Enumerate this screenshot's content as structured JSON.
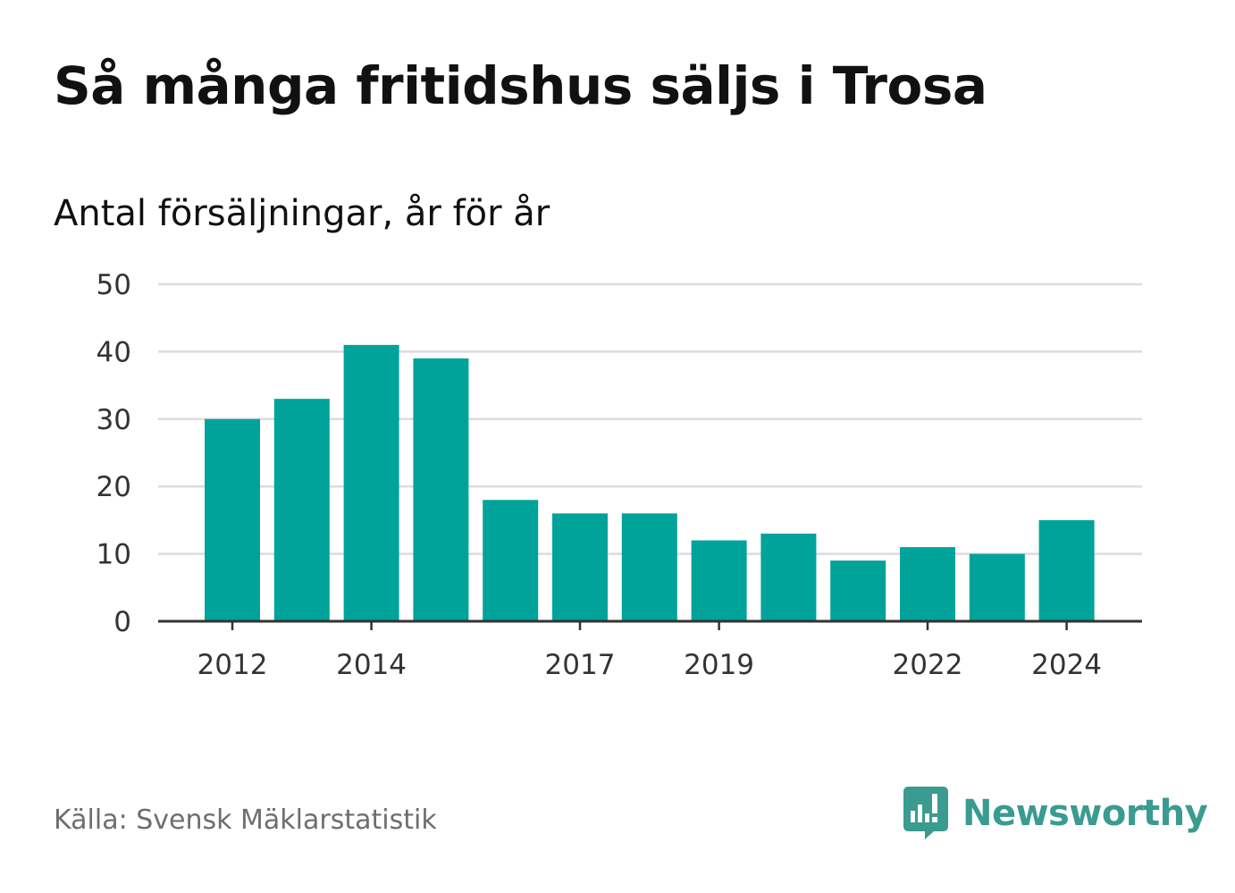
{
  "chart_data": {
    "type": "bar",
    "title": "Så många fritidshus säljs i Trosa",
    "subtitle": "Antal försäljningar, år för år",
    "categories": [
      "2012",
      "2013",
      "2014",
      "2015",
      "2016",
      "2017",
      "2018",
      "2019",
      "2020",
      "2021",
      "2022",
      "2023",
      "2024"
    ],
    "values": [
      30,
      33,
      41,
      39,
      18,
      16,
      16,
      12,
      13,
      9,
      11,
      10,
      15
    ],
    "x_tick_labels": [
      "2012",
      "2014",
      "2017",
      "2019",
      "2022",
      "2024"
    ],
    "y_ticks": [
      0,
      10,
      20,
      30,
      40,
      50
    ],
    "ylim": [
      0,
      50
    ],
    "xlabel": "",
    "ylabel": "",
    "grid": true,
    "bar_color": "#00a39a"
  },
  "footer": {
    "source": "Källa: Svensk Mäklarstatistik",
    "brand": "Newsworthy",
    "brand_icon": "newsworthy-logo-icon",
    "brand_color": "#3a9b90"
  }
}
